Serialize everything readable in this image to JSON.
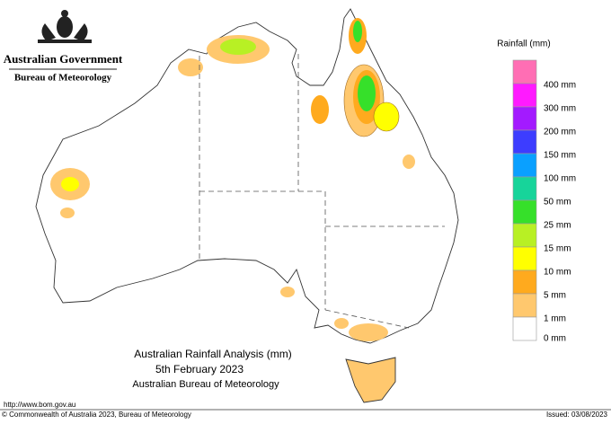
{
  "header": {
    "government": "Australian Government",
    "bureau": "Bureau of Meteorology"
  },
  "title": {
    "line1": "Australian Rainfall Analysis (mm)",
    "line2": "5th February 2023",
    "line3": "Australian Bureau of Meteorology"
  },
  "legend": {
    "title": "Rainfall (mm)",
    "colors": [
      "#ff6eb4",
      "#ff1aff",
      "#a31aff",
      "#3d3dff",
      "#0aa0ff",
      "#17d49a",
      "#36e02a",
      "#b8f024",
      "#ffff00",
      "#ffaa1e",
      "#ffc86e",
      "#ffffff"
    ],
    "labels": [
      "400 mm",
      "300 mm",
      "200 mm",
      "150 mm",
      "100 mm",
      "50 mm",
      "25 mm",
      "15 mm",
      "10 mm",
      "5 mm",
      "1 mm",
      "0 mm"
    ]
  },
  "footer": {
    "url": "http://www.bom.gov.au",
    "copyright": "© Commonwealth of Australia 2023, Bureau of Meteorology",
    "issued": "Issued: 03/08/2023"
  }
}
